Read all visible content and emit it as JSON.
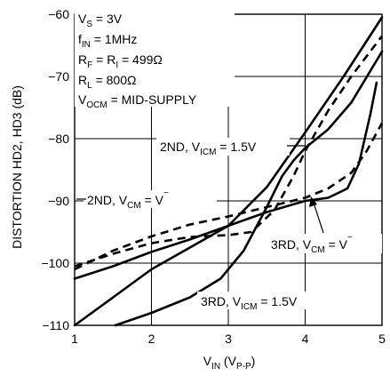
{
  "chart_data": {
    "type": "line",
    "xlabel": {
      "main": "V",
      "sub": "IN",
      "rest": " (V",
      "sub2": "P-P",
      "close": ")"
    },
    "ylabel": "DISTORTION HD2, HD3 (dB)",
    "xlim": [
      1,
      5
    ],
    "ylim": [
      -110,
      -60
    ],
    "x_ticks": [
      "1",
      "2",
      "3",
      "4",
      "5"
    ],
    "y_ticks": [
      "−60",
      "−70",
      "−80",
      "−90",
      "−100",
      "−110"
    ],
    "grid": true,
    "conditions": [
      {
        "main": "V",
        "sub": "S",
        "rest": " = 3V"
      },
      {
        "main": "f",
        "sub": "IN",
        "rest": " = 1MHz"
      },
      {
        "main": "R",
        "sub": "F",
        "mid": " = R",
        "sub2": "I",
        "rest": " = 499Ω"
      },
      {
        "main": "R",
        "sub": "L",
        "rest": " = 800Ω"
      },
      {
        "main": "V",
        "sub": "OCM",
        "rest": " = MID-SUPPLY"
      }
    ],
    "series": [
      {
        "label": {
          "pre": "2ND, V",
          "sub": "CM",
          "post": " = V",
          "sup": "−"
        },
        "style": "dashed",
        "points": [
          [
            1,
            -101
          ],
          [
            1.5,
            -98
          ],
          [
            2,
            -95.7
          ],
          [
            2.5,
            -93.8
          ],
          [
            3,
            -92.5
          ],
          [
            3.5,
            -91
          ],
          [
            4,
            -89.5
          ],
          [
            4.3,
            -88
          ],
          [
            4.6,
            -85.5
          ],
          [
            4.8,
            -82
          ],
          [
            5,
            -77.5
          ]
        ]
      },
      {
        "label": {
          "pre": "2ND, V",
          "sub": "ICM",
          "post": " = 1.5V"
        },
        "style": "dashed",
        "points": [
          [
            1,
            -100.5
          ],
          [
            1.5,
            -98.5
          ],
          [
            2,
            -96.8
          ],
          [
            2.5,
            -95.8
          ],
          [
            3,
            -95.5
          ],
          [
            3.3,
            -95
          ],
          [
            3.6,
            -91.5
          ],
          [
            3.85,
            -86
          ],
          [
            4,
            -82
          ],
          [
            4.3,
            -75.5
          ],
          [
            4.6,
            -70
          ],
          [
            5,
            -63.5
          ]
        ]
      },
      {
        "label": {
          "pre": "3RD, V",
          "sub": "CM",
          "post": " = V",
          "sup": "−"
        },
        "style": "solid",
        "points": [
          [
            1,
            -102.5
          ],
          [
            1.5,
            -100.5
          ],
          [
            2,
            -98.2
          ],
          [
            2.5,
            -96.2
          ],
          [
            3,
            -94
          ],
          [
            3.5,
            -91.8
          ],
          [
            4,
            -90
          ],
          [
            4.3,
            -89.5
          ],
          [
            4.55,
            -88
          ],
          [
            4.7,
            -84
          ],
          [
            4.85,
            -76
          ],
          [
            4.93,
            -71
          ]
        ]
      },
      {
        "label": {
          "pre": "3RD, V",
          "sub": "ICM",
          "post": " = 1.5V"
        },
        "style": "solid",
        "points": [
          [
            1,
            -110
          ],
          [
            1.5,
            -105.5
          ],
          [
            2,
            -101
          ],
          [
            2.5,
            -97.5
          ],
          [
            3,
            -94
          ],
          [
            3.5,
            -87.8
          ],
          [
            4,
            -79
          ],
          [
            4.5,
            -70
          ],
          [
            5,
            -60.5
          ]
        ]
      },
      {
        "label": null,
        "style": "solid",
        "points": [
          [
            1.53,
            -110
          ],
          [
            2,
            -108
          ],
          [
            2.5,
            -105.5
          ],
          [
            2.9,
            -102.5
          ],
          [
            3.2,
            -98
          ],
          [
            3.5,
            -91
          ],
          [
            3.7,
            -86
          ],
          [
            3.85,
            -83.5
          ],
          [
            4,
            -81.5
          ],
          [
            4.3,
            -78.5
          ],
          [
            4.6,
            -74.2
          ],
          [
            5,
            -66
          ]
        ]
      }
    ]
  }
}
